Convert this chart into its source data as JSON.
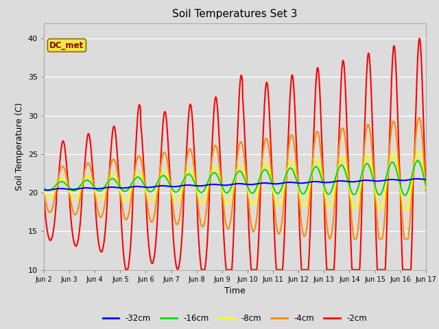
{
  "title": "Soil Temperatures Set 3",
  "xlabel": "Time",
  "ylabel": "Soil Temperature (C)",
  "ylim": [
    10,
    42
  ],
  "yticks": [
    10,
    15,
    20,
    25,
    30,
    35,
    40
  ],
  "background_color": "#dcdcdc",
  "plot_bg_color": "#dcdcdc",
  "annotation_text": "DC_met",
  "annotation_color": "#8B0000",
  "annotation_bg": "#f5e642",
  "legend_labels": [
    "-32cm",
    "-16cm",
    "-8cm",
    "-4cm",
    "-2cm"
  ],
  "line_colors": [
    "#0000ff",
    "#00dd00",
    "#ffff00",
    "#ff8800",
    "#ff0000"
  ],
  "line_widths": [
    1.5,
    1.5,
    1.5,
    1.5,
    1.5
  ],
  "x_tick_labels": [
    "Jun 2",
    "Jun 3",
    "Jun 4",
    "Jun 5",
    "Jun 6",
    "Jun 7",
    "Jun 8",
    "Jun 9",
    "Jun 10",
    "Jun 11",
    "Jun 12",
    "Jun 13",
    "Jun 14",
    "Jun 15",
    "Jun 16",
    "Jun 17"
  ],
  "n_days": 15,
  "points_per_day": 96
}
